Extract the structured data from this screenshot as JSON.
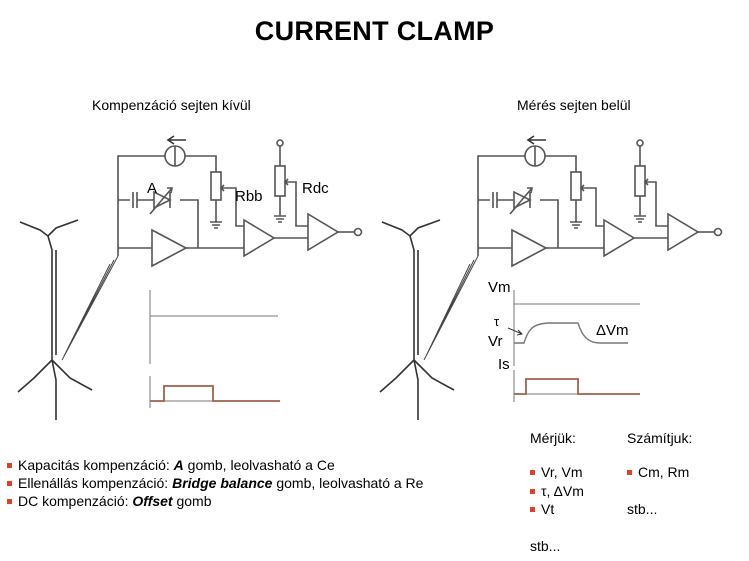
{
  "title": "CURRENT CLAMP",
  "left_panel": {
    "subtitle": "Kompenzáció sejten kívül",
    "labels": {
      "a": "A",
      "rbb": "Rbb",
      "rdc": "Rdc"
    }
  },
  "right_panel": {
    "subtitle": "Mérés sejten belül",
    "labels": {
      "vm": "Vm",
      "tau": "τ",
      "vr": "Vr",
      "dvm": "ΔVm",
      "is": "Is"
    }
  },
  "bullets": [
    {
      "pre": "Kapacitás kompenzáció: ",
      "em": "A",
      "post": " gomb, leolvasható a Ce"
    },
    {
      "pre": "Ellenállás kompenzáció: ",
      "em": "Bridge balance",
      "post": " gomb, leolvasható a Re"
    },
    {
      "pre": "DC kompenzáció: ",
      "em": "Offset",
      "post": " gomb"
    }
  ],
  "measured": {
    "heading": "Mérjük:",
    "items": [
      "Vr, Vm",
      "τ, ΔVm",
      "Vt"
    ],
    "footer": "stb..."
  },
  "calculated": {
    "heading": "Számítjuk:",
    "items": [
      "Cm, Rm"
    ],
    "footer": "stb..."
  },
  "colors": {
    "bullet": "#e0402a",
    "trace": "#a0604a",
    "wire": "#555555"
  }
}
